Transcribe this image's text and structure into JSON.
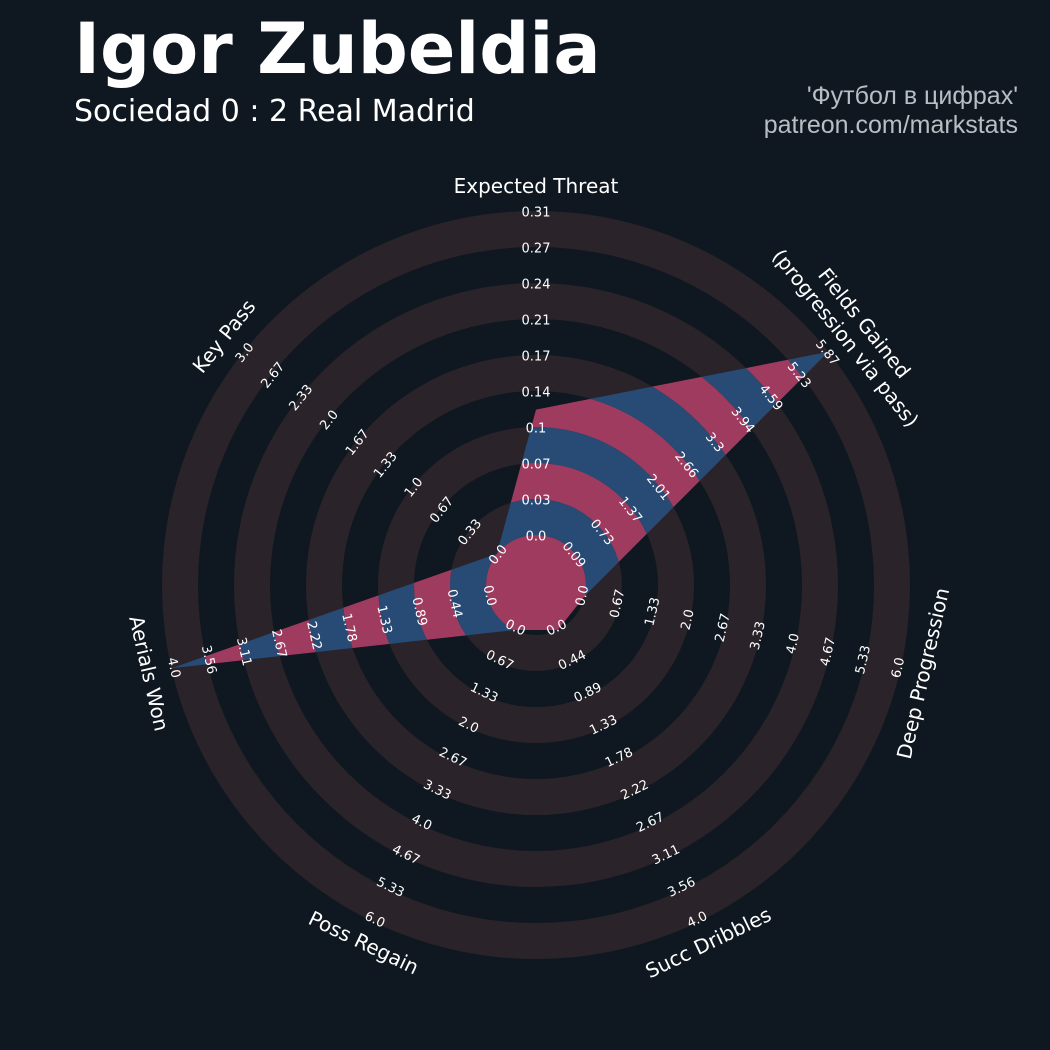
{
  "header": {
    "title": "Igor Zubeldia",
    "subtitle": "Sociedad 0 : 2 Real Madrid",
    "credit_line1": "'Футбол в цифрах'",
    "credit_line2": "patreon.com/markstats"
  },
  "colors": {
    "background": "#0f1820",
    "ring_band": "#2a2329",
    "value_blue": "#274b75",
    "value_pink": "#a03b60",
    "text": "#ffffff"
  },
  "chart_data": {
    "type": "radar",
    "rings": 9,
    "axes": [
      {
        "name": "Expected Threat",
        "ticks": [
          "0.0",
          "0.03",
          "0.07",
          "0.1",
          "0.14",
          "0.17",
          "0.21",
          "0.24",
          "0.27",
          "0.31"
        ],
        "max": 0.31,
        "value": 0.12
      },
      {
        "name": "Fields Gained\n(progression via pass)",
        "ticks": [
          "0.09",
          "0.73",
          "1.37",
          "2.01",
          "2.66",
          "3.3",
          "3.94",
          "4.59",
          "5.23",
          "5.87"
        ],
        "max": 5.87,
        "value": 5.87
      },
      {
        "name": "Deep Progression",
        "ticks": [
          "0.0",
          "0.67",
          "1.33",
          "2.0",
          "2.67",
          "3.33",
          "4.0",
          "4.67",
          "5.33",
          "6.0"
        ],
        "max": 6.0,
        "value": 0.0
      },
      {
        "name": "Succ Dribbles",
        "ticks": [
          "0.0",
          "0.44",
          "0.89",
          "1.33",
          "1.78",
          "2.22",
          "2.67",
          "3.11",
          "3.56",
          "4.0"
        ],
        "max": 4.0,
        "value": 0.0
      },
      {
        "name": "Poss Regain",
        "ticks": [
          "0.0",
          "0.67",
          "1.33",
          "2.0",
          "2.67",
          "3.33",
          "4.0",
          "4.67",
          "5.33",
          "6.0"
        ],
        "max": 6.0,
        "value": 0.0
      },
      {
        "name": "Aerials Won",
        "ticks": [
          "0.0",
          "0.44",
          "0.89",
          "1.33",
          "1.78",
          "2.22",
          "2.67",
          "3.11",
          "3.56",
          "4.0"
        ],
        "max": 4.0,
        "value": 4.0
      },
      {
        "name": "Key Pass",
        "ticks": [
          "0.0",
          "0.33",
          "0.67",
          "1.0",
          "1.33",
          "1.67",
          "2.0",
          "2.33",
          "2.67",
          "3.0"
        ],
        "max": 3.0,
        "value": 0.0
      }
    ]
  }
}
